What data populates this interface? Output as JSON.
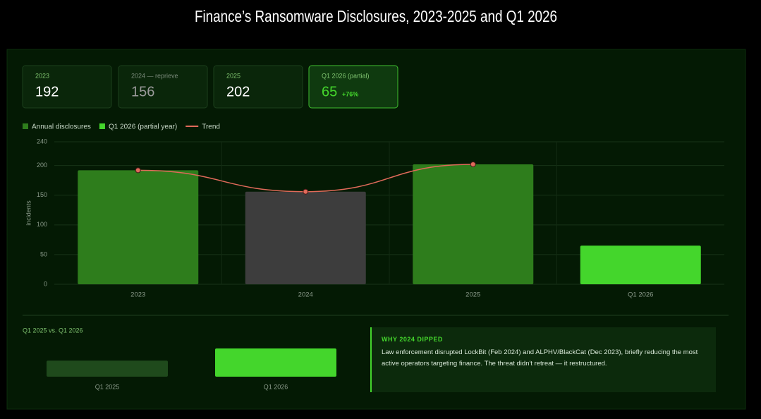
{
  "title": "Finance’s Ransomware Disclosures, 2023-2025 and Q1 2026",
  "cards": [
    {
      "label": "2023",
      "value": 192
    },
    {
      "label": "2024 — reprieve",
      "value": 156
    },
    {
      "label": "2025",
      "value": 202
    },
    {
      "label": "Q1 2026 (partial)",
      "value": 65,
      "delta": "+76%"
    }
  ],
  "chart_data": [
    {
      "type": "bar",
      "ylabel": "incidents",
      "categories": [
        "2023",
        "2024",
        "2025",
        "Q1 2026"
      ],
      "values": [
        192,
        156,
        202,
        65
      ],
      "colors": [
        "#2e7d1c",
        "#3d3d3d",
        "#2e7d1c",
        "#44d62c"
      ],
      "legend": [
        {
          "name": "Annual disclosures",
          "color": "#2e7d1c"
        },
        {
          "name": "Q1 2026 (partial year)",
          "color": "#44d62c"
        }
      ],
      "trend": {
        "name": "Trend",
        "color": "#e06a5a",
        "values": [
          192,
          156,
          202,
          null
        ]
      },
      "ylim": [
        0,
        240
      ],
      "yticks": [
        0,
        50,
        100,
        150,
        200,
        240
      ],
      "grid": true
    },
    {
      "type": "bar",
      "title": "Q1 2025 vs. Q1 2026",
      "categories": [
        "Q1 2025",
        "Q1 2026"
      ],
      "values": [
        37,
        65
      ],
      "colors": [
        "#1f4a1c",
        "#44d62c"
      ]
    }
  ],
  "note": {
    "title": "WHY 2024 DIPPED",
    "text": "Law enforcement disrupted LockBit (Feb 2024) and ALPHV/BlackCat (Dec 2023), briefly reducing the most active operators targeting finance. The threat didn't retreat — it restructured."
  }
}
